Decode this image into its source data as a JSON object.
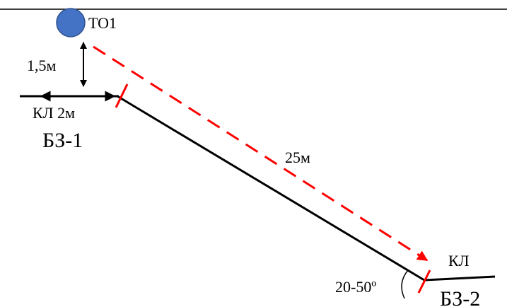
{
  "labels": {
    "station": "ТО1",
    "height": "1,5м",
    "cable_left": "КЛ 2м",
    "zone_left": "БЗ-1",
    "distance": "25м",
    "cable_right": "КЛ",
    "angle": "20-50º",
    "zone_right": "БЗ-2"
  },
  "colors": {
    "station_fill": "#4472C4",
    "station_stroke": "#2F528F",
    "dashed_arrow": "#FF0000",
    "tick_marks": "#FF0000",
    "lines": "#000000"
  }
}
